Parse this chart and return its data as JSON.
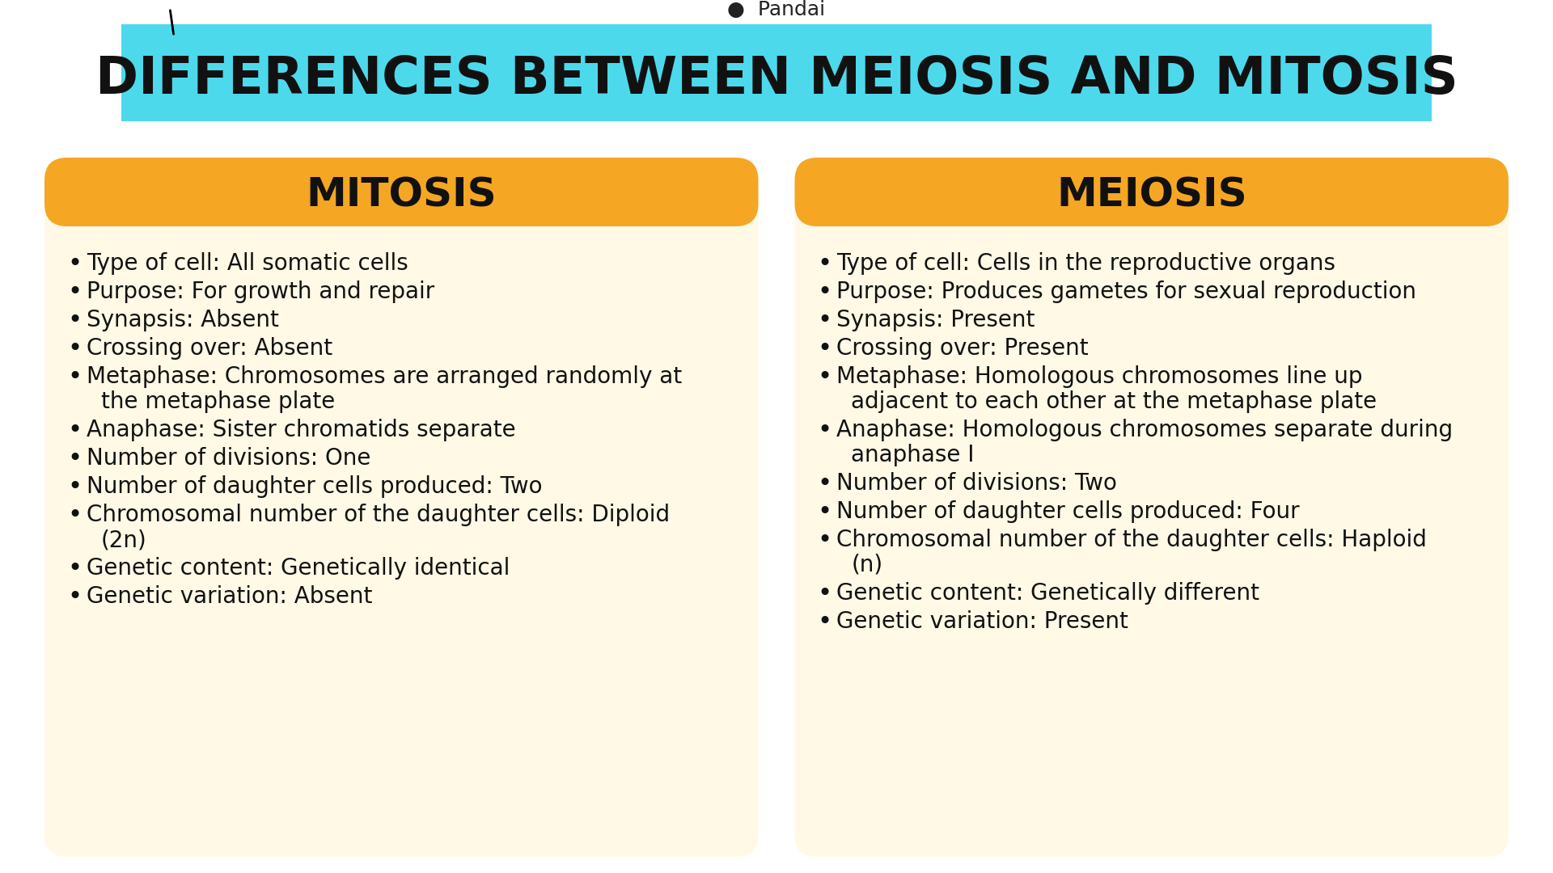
{
  "background_color": "#ffffff",
  "header_bg_color": "#4dd9ec",
  "header_text": "DIFFERENCES BETWEEN MEIOSIS AND MITOSIS",
  "header_text_color": "#111111",
  "header_font_size": 46,
  "pandai_text": "Pandai",
  "card_bg_color": "#fff9e6",
  "card_header_color": "#f5a623",
  "card_header_text_color": "#111111",
  "card_header_font_size": 36,
  "body_font_size": 20,
  "body_text_color": "#111111",
  "mitosis_title": "MITOSIS",
  "meiosis_title": "MEIOSIS",
  "mitosis_points": [
    [
      "Type of cell: All somatic cells"
    ],
    [
      "Purpose: For growth and repair"
    ],
    [
      "Synapsis: Absent"
    ],
    [
      "Crossing over: Absent"
    ],
    [
      "Metaphase: Chromosomes are arranged randomly at",
      "the metaphase plate"
    ],
    [
      "Anaphase: Sister chromatids separate"
    ],
    [
      "Number of divisions: One"
    ],
    [
      "Number of daughter cells produced: Two"
    ],
    [
      "Chromosomal number of the daughter cells: Diploid",
      "(2n)"
    ],
    [
      "Genetic content: Genetically identical"
    ],
    [
      "Genetic variation: Absent"
    ]
  ],
  "meiosis_points": [
    [
      "Type of cell: Cells in the reproductive organs"
    ],
    [
      "Purpose: Produces gametes for sexual reproduction"
    ],
    [
      "Synapsis: Present"
    ],
    [
      "Crossing over: Present"
    ],
    [
      "Metaphase: Homologous chromosomes line up",
      "adjacent to each other at the metaphase plate"
    ],
    [
      "Anaphase: Homologous chromosomes separate during",
      "anaphase I"
    ],
    [
      "Number of divisions: Two"
    ],
    [
      "Number of daughter cells produced: Four"
    ],
    [
      "Chromosomal number of the daughter cells: Haploid",
      "(n)"
    ],
    [
      "Genetic content: Genetically different"
    ],
    [
      "Genetic variation: Present"
    ]
  ]
}
